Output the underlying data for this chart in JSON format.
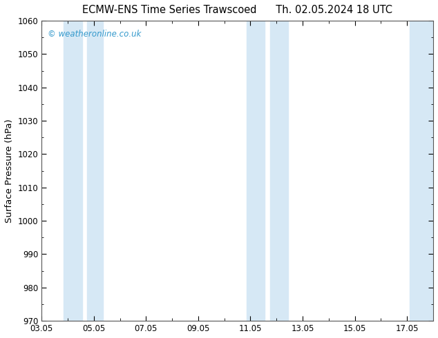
{
  "title_left": "ECMW-ENS Time Series Trawscoed",
  "title_right": "Th. 02.05.2024 18 UTC",
  "ylabel": "Surface Pressure (hPa)",
  "ylim": [
    970,
    1060
  ],
  "yticks": [
    970,
    980,
    990,
    1000,
    1010,
    1020,
    1030,
    1040,
    1050,
    1060
  ],
  "xlim_start": 0,
  "xlim_end": 15,
  "xtick_positions": [
    0,
    2,
    4,
    6,
    8,
    10,
    12,
    14
  ],
  "xtick_labels": [
    "03.05",
    "05.05",
    "07.05",
    "09.05",
    "11.05",
    "13.05",
    "15.05",
    "17.05"
  ],
  "shaded_bands": [
    {
      "xmin": 0.85,
      "xmax": 1.55
    },
    {
      "xmin": 1.75,
      "xmax": 2.35
    },
    {
      "xmin": 7.85,
      "xmax": 8.55
    },
    {
      "xmin": 8.75,
      "xmax": 9.45
    },
    {
      "xmin": 14.1,
      "xmax": 15.0
    }
  ],
  "band_color": "#d6e8f5",
  "background_color": "#ffffff",
  "watermark_text": "© weatheronline.co.uk",
  "watermark_color": "#3399cc",
  "title_fontsize": 10.5,
  "tick_fontsize": 8.5,
  "ylabel_fontsize": 9.5
}
